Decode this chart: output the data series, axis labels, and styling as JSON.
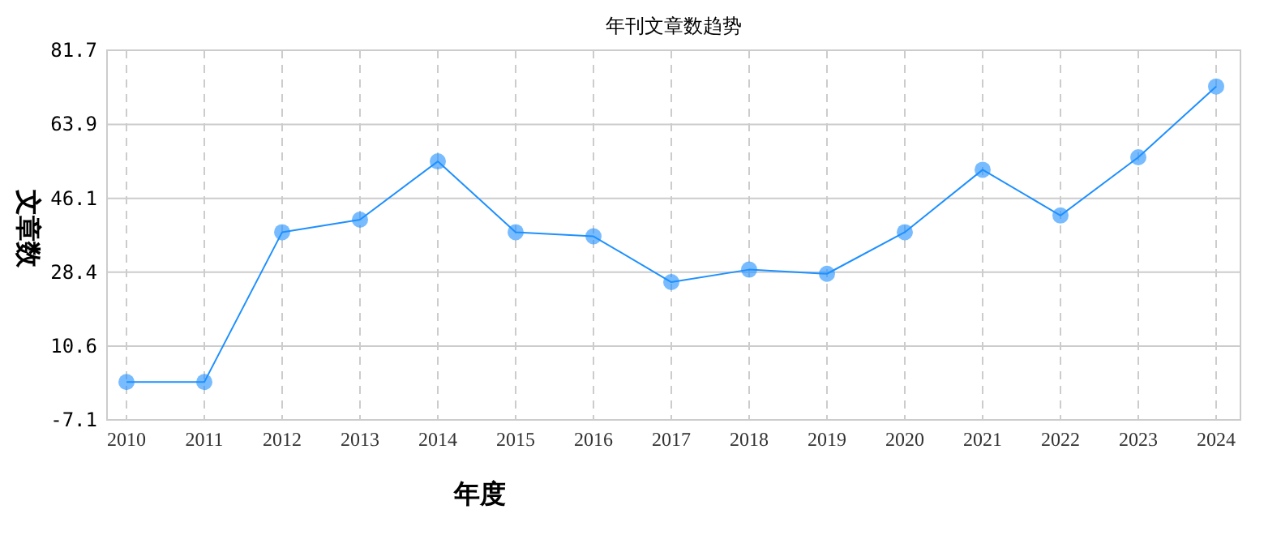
{
  "chart_data": {
    "type": "line",
    "title": "年刊文章数趋势",
    "xlabel": "年度",
    "ylabel": "文章数",
    "categories": [
      "2010",
      "2011",
      "2012",
      "2013",
      "2014",
      "2015",
      "2016",
      "2017",
      "2018",
      "2019",
      "2020",
      "2021",
      "2022",
      "2023",
      "2024"
    ],
    "series": [
      {
        "color": "#1e90ff",
        "values": [
          2,
          2,
          38,
          41,
          55,
          38,
          37,
          26,
          29,
          28,
          38,
          53,
          42,
          56,
          73
        ]
      }
    ],
    "ylim": [
      -7.1,
      81.7
    ],
    "yticks": [
      -7.1,
      10.6,
      28.4,
      46.1,
      63.9,
      81.7
    ],
    "grid": true,
    "marker": "circle",
    "line_style": "solid"
  }
}
